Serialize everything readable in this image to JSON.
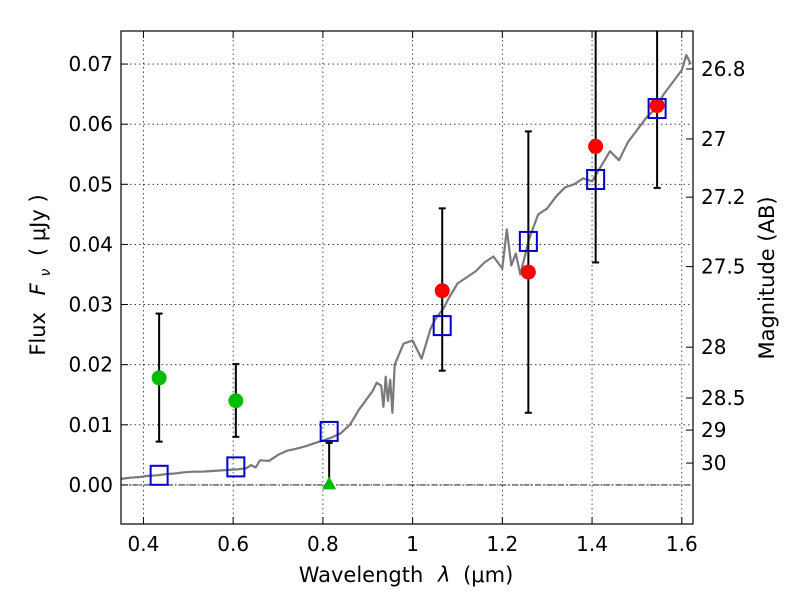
{
  "chart_data": {
    "type": "scatter",
    "title": "",
    "xlabel_text": "Wavelength",
    "xlabel_var": "λ",
    "xlabel_unit": "(μm)",
    "ylabel_text": "Flux",
    "ylabel_var": "F",
    "ylabel_sub": "ν",
    "ylabel_unit": "( μJy )",
    "y2label": "Magnitude (AB)",
    "xlim": [
      0.35,
      1.625
    ],
    "ylim": [
      -0.0065,
      0.0755
    ],
    "xticks": [
      {
        "value": 0.4,
        "label": "0.4"
      },
      {
        "value": 0.6,
        "label": "0.6"
      },
      {
        "value": 0.8,
        "label": "0.8"
      },
      {
        "value": 1.0,
        "label": "1"
      },
      {
        "value": 1.2,
        "label": "1.2"
      },
      {
        "value": 1.4,
        "label": "1.4"
      },
      {
        "value": 1.6,
        "label": "1.6"
      }
    ],
    "yticks": [
      {
        "value": 0.0,
        "label": "0.00"
      },
      {
        "value": 0.01,
        "label": "0.01"
      },
      {
        "value": 0.02,
        "label": "0.02"
      },
      {
        "value": 0.03,
        "label": "0.03"
      },
      {
        "value": 0.04,
        "label": "0.04"
      },
      {
        "value": 0.05,
        "label": "0.05"
      },
      {
        "value": 0.06,
        "label": "0.06"
      },
      {
        "value": 0.07,
        "label": "0.07"
      }
    ],
    "y2ticks": [
      {
        "mag": 26.8,
        "label": "26.8"
      },
      {
        "mag": 27.0,
        "label": "27"
      },
      {
        "mag": 27.2,
        "label": "27.2"
      },
      {
        "mag": 27.5,
        "label": "27.5"
      },
      {
        "mag": 28.0,
        "label": "28"
      },
      {
        "mag": 28.5,
        "label": "28.5"
      },
      {
        "mag": 29.0,
        "label": "29"
      },
      {
        "mag": 30.0,
        "label": "30"
      }
    ],
    "grid": true,
    "zero_line": true,
    "series": [
      {
        "name": "model-spectrum",
        "kind": "line",
        "color": "#7a7a7a",
        "x": [
          0.35,
          0.37,
          0.39,
          0.41,
          0.43,
          0.45,
          0.47,
          0.49,
          0.51,
          0.53,
          0.55,
          0.57,
          0.59,
          0.61,
          0.63,
          0.64,
          0.65,
          0.66,
          0.68,
          0.7,
          0.72,
          0.74,
          0.76,
          0.78,
          0.8,
          0.82,
          0.84,
          0.86,
          0.87,
          0.88,
          0.89,
          0.9,
          0.91,
          0.92,
          0.93,
          0.935,
          0.94,
          0.945,
          0.95,
          0.955,
          0.96,
          0.98,
          1.0,
          1.02,
          1.04,
          1.05,
          1.06,
          1.07,
          1.08,
          1.1,
          1.12,
          1.14,
          1.16,
          1.18,
          1.2,
          1.21,
          1.22,
          1.23,
          1.24,
          1.26,
          1.28,
          1.3,
          1.32,
          1.34,
          1.36,
          1.38,
          1.4,
          1.42,
          1.44,
          1.46,
          1.48,
          1.5,
          1.52,
          1.54,
          1.56,
          1.58,
          1.6,
          1.61,
          1.62
        ],
        "y": [
          0.001,
          0.0012,
          0.0013,
          0.0015,
          0.0016,
          0.0018,
          0.0019,
          0.0021,
          0.0022,
          0.0022,
          0.0023,
          0.0024,
          0.0025,
          0.0026,
          0.0028,
          0.0033,
          0.0029,
          0.0041,
          0.004,
          0.005,
          0.0057,
          0.006,
          0.0064,
          0.0069,
          0.0074,
          0.0079,
          0.0086,
          0.01,
          0.0112,
          0.0125,
          0.0135,
          0.0145,
          0.0155,
          0.017,
          0.0165,
          0.013,
          0.018,
          0.014,
          0.0175,
          0.012,
          0.02,
          0.0235,
          0.024,
          0.021,
          0.026,
          0.0275,
          0.0285,
          0.0295,
          0.031,
          0.0335,
          0.0345,
          0.0355,
          0.037,
          0.038,
          0.036,
          0.0425,
          0.0365,
          0.0385,
          0.035,
          0.041,
          0.045,
          0.046,
          0.048,
          0.0495,
          0.05,
          0.051,
          0.0505,
          0.053,
          0.0555,
          0.054,
          0.057,
          0.059,
          0.061,
          0.0625,
          0.065,
          0.067,
          0.069,
          0.0715,
          0.07
        ]
      },
      {
        "name": "observed-red",
        "kind": "points",
        "marker": "circle",
        "color": "#ff0000",
        "points": [
          {
            "x": 1.066,
            "y": 0.0323,
            "ylo": 0.019,
            "yhi": 0.046
          },
          {
            "x": 1.258,
            "y": 0.0354,
            "ylo": 0.012,
            "yhi": 0.0588
          },
          {
            "x": 1.408,
            "y": 0.0563,
            "ylo": 0.037,
            "yhi": 0.076
          },
          {
            "x": 1.545,
            "y": 0.0631,
            "ylo": 0.0494,
            "yhi": 0.076
          }
        ]
      },
      {
        "name": "observed-green",
        "kind": "points",
        "marker": "circle",
        "color": "#00bb00",
        "points": [
          {
            "x": 0.435,
            "y": 0.0178,
            "ylo": 0.0072,
            "yhi": 0.0285
          },
          {
            "x": 0.606,
            "y": 0.014,
            "ylo": 0.008,
            "yhi": 0.0201
          }
        ]
      },
      {
        "name": "upper-limit-green",
        "kind": "points",
        "marker": "triangle",
        "color": "#00bb00",
        "points": [
          {
            "x": 0.814,
            "y": 0.0,
            "ylo": 0.0,
            "yhi": 0.007
          }
        ]
      },
      {
        "name": "model-photometry",
        "kind": "points",
        "marker": "square-open",
        "color": "#0000cc",
        "points": [
          {
            "x": 0.435,
            "y": 0.0016
          },
          {
            "x": 0.606,
            "y": 0.003
          },
          {
            "x": 0.814,
            "y": 0.0089
          },
          {
            "x": 1.066,
            "y": 0.0265
          },
          {
            "x": 1.258,
            "y": 0.0405
          },
          {
            "x": 1.408,
            "y": 0.0508
          },
          {
            "x": 1.545,
            "y": 0.0626
          }
        ]
      }
    ]
  }
}
